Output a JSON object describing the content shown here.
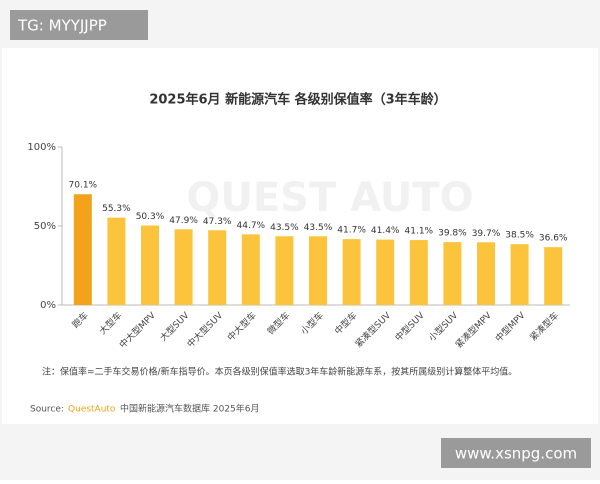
{
  "watermark": "TG: MYYJJPP",
  "footer_watermark": "www.xsnpg.com",
  "background_logo": "QUEST AUTO",
  "chart_data": {
    "type": "bar",
    "title": "2025年6月 新能源汽车 各级别保值率（3年车龄）",
    "categories": [
      "跑车",
      "大型车",
      "中大型MPV",
      "大型SUV",
      "中大型SUV",
      "中大型车",
      "微型车",
      "小型车",
      "中型车",
      "紧凑型SUV",
      "中型SUV",
      "小型SUV",
      "紧凑型MPV",
      "中型MPV",
      "紧凑型车"
    ],
    "values": [
      70.1,
      55.3,
      50.3,
      47.9,
      47.3,
      44.7,
      43.5,
      43.5,
      41.7,
      41.4,
      41.1,
      39.8,
      39.7,
      38.5,
      36.6
    ],
    "value_labels": [
      "70.1%",
      "55.3%",
      "50.3%",
      "47.9%",
      "47.3%",
      "44.7%",
      "43.5%",
      "43.5%",
      "41.7%",
      "41.4%",
      "41.1%",
      "39.8%",
      "39.7%",
      "38.5%",
      "36.6%"
    ],
    "colors": [
      "#f2a31b",
      "#fbc43c",
      "#fbc43c",
      "#fbc43c",
      "#fbc43c",
      "#fbc43c",
      "#fbc43c",
      "#fbc43c",
      "#fbc43c",
      "#fbc43c",
      "#fbc43c",
      "#fbc43c",
      "#fbc43c",
      "#fbc43c",
      "#fbc43c"
    ],
    "ylim": [
      0,
      100
    ],
    "yticks": [
      {
        "value": 0,
        "label": "0%"
      },
      {
        "value": 50,
        "label": "50%"
      },
      {
        "value": 100,
        "label": "100%"
      }
    ],
    "grid": false,
    "note": "注：保值率=二手车交易价格/新车指导价。本页各级别保值率选取3年车龄新能源车系，按其所属级别计算整体平均值。",
    "source_label": "Source:",
    "source_brand": "QuestAuto",
    "source_text": "中国新能源汽车数据库 2025年6月"
  }
}
